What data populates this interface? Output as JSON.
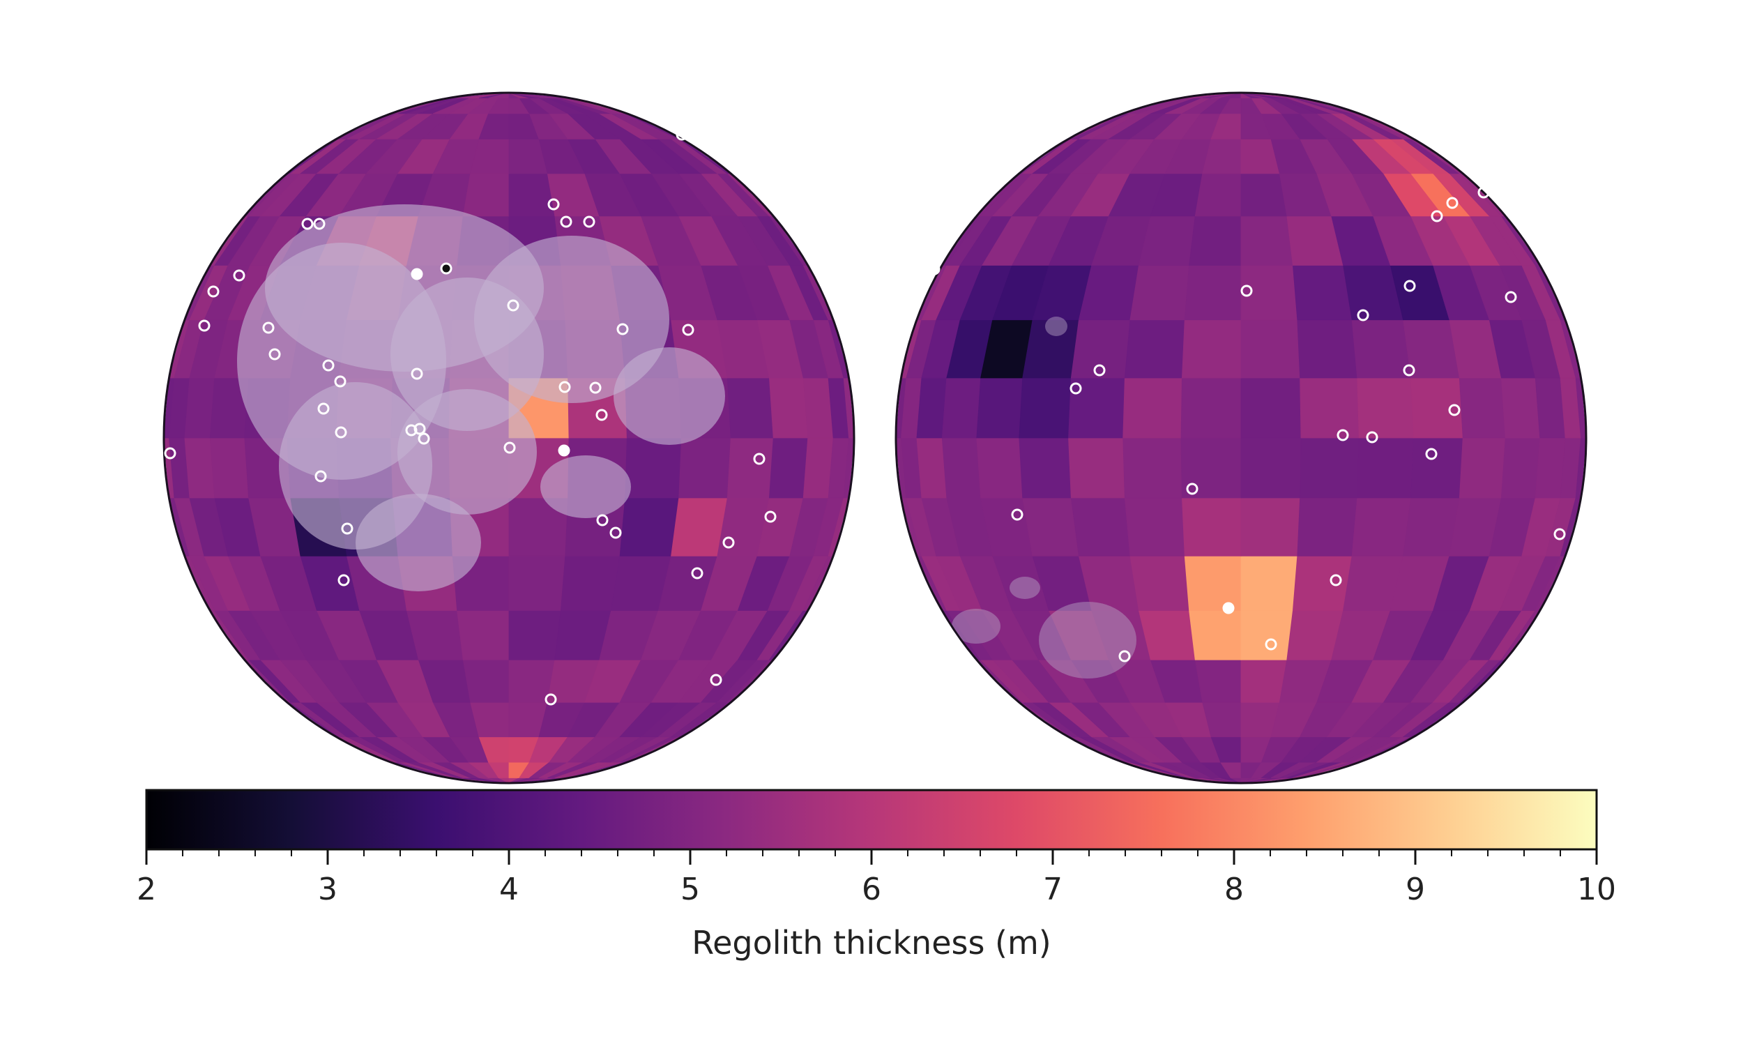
{
  "figure": {
    "hemispheres": [
      {
        "name": "",
        "mare": true
      },
      {
        "name": "",
        "mare": false
      }
    ],
    "colorbar": {
      "label": "Regolith thickness (m)",
      "range": [
        2,
        10
      ],
      "ticks": [
        "2",
        "3",
        "4",
        "5",
        "6",
        "7",
        "8",
        "9",
        "10"
      ],
      "colormap": "magma"
    }
  },
  "colors": {
    "background": "#ffffff",
    "outline": "#1a1020",
    "mare_overlay": "#b9a5c8",
    "marker_fill": "#ffffff"
  }
}
